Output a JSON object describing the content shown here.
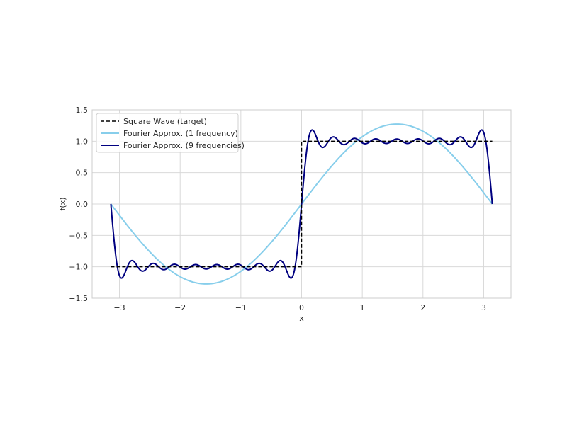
{
  "chart_data": {
    "type": "line",
    "xlabel": "x",
    "ylabel": "f(x)",
    "xlim": [
      -3.45,
      3.45
    ],
    "ylim": [
      -1.5,
      1.5
    ],
    "x_ticks": [
      -3,
      -2,
      -1,
      0,
      1,
      2,
      3
    ],
    "x_tick_labels": [
      "−3",
      "−2",
      "−1",
      "0",
      "1",
      "2",
      "3"
    ],
    "y_ticks": [
      -1.5,
      -1.0,
      -0.5,
      0.0,
      0.5,
      1.0,
      1.5
    ],
    "y_tick_labels": [
      "−1.5",
      "−1.0",
      "−0.5",
      "0.0",
      "0.5",
      "1.0",
      "1.5"
    ],
    "grid": true,
    "legend_position": "top-left",
    "x_range": [
      -3.14159,
      3.14159
    ],
    "series": [
      {
        "name": "Square Wave (target)",
        "kind": "square-wave",
        "color": "#000000",
        "dashed": true,
        "points": [
          [
            -3.14159,
            -1
          ],
          [
            0,
            -1
          ],
          [
            0,
            1
          ],
          [
            3.14159,
            1
          ]
        ]
      },
      {
        "name": "Fourier Approx. (1 frequency)",
        "kind": "fourier-odd-harmonics",
        "harmonics": 1,
        "color": "#87ceeb",
        "dashed": false
      },
      {
        "name": "Fourier Approx. (9 frequencies)",
        "kind": "fourier-odd-harmonics",
        "harmonics": 9,
        "color": "#000080",
        "dashed": false
      }
    ]
  }
}
